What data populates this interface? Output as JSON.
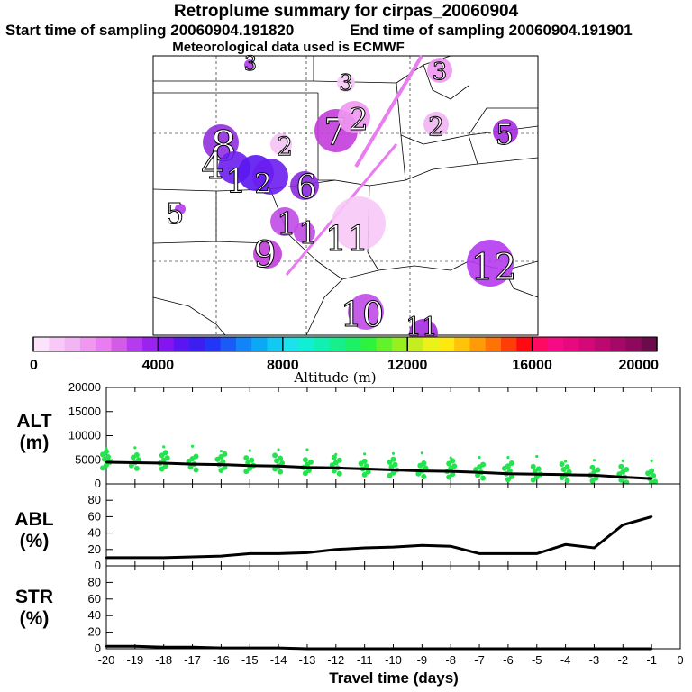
{
  "titles": {
    "main": "Retroplume summary for cirpas_20060904",
    "start": "Start time of sampling 20060904.191820",
    "end": "End time of sampling 20060904.191901",
    "met": "Meteorological data used is ECMWF"
  },
  "chart_data": [
    {
      "type": "map",
      "title": "Retroplume summary for cirpas_20060904",
      "plume_labels": [
        {
          "label": "3",
          "color": "#b53af0"
        },
        {
          "label": "3",
          "color": "#f7c9f7"
        },
        {
          "label": "3",
          "color": "#ef97f1"
        },
        {
          "label": "7",
          "color": "#c33ddc"
        },
        {
          "label": "2",
          "color": "#ef97f1"
        },
        {
          "label": "2",
          "color": "#f2b4f3"
        },
        {
          "label": "5",
          "color": "#a52adf"
        },
        {
          "label": "8",
          "color": "#9130dd"
        },
        {
          "label": "4",
          "color": "#6a1df0"
        },
        {
          "label": "1",
          "color": "#5a16f0"
        },
        {
          "label": "2",
          "color": "#6a1df0"
        },
        {
          "label": "6",
          "color": "#8a2ae0"
        },
        {
          "label": "2",
          "color": "#f5c2f5"
        },
        {
          "label": "5",
          "color": "#b53af0"
        },
        {
          "label": "1",
          "color": "#c04be6"
        },
        {
          "label": "1",
          "color": "#c04be6"
        },
        {
          "label": "11",
          "color": "#f7c9f7"
        },
        {
          "label": "9",
          "color": "#c33ddc"
        },
        {
          "label": "12",
          "color": "#b53af0"
        },
        {
          "label": "10",
          "color": "#c04be6"
        },
        {
          "label": "11",
          "color": "#a52adf"
        }
      ]
    },
    {
      "type": "colorbar",
      "xlabel": "Altitude (m)",
      "range": [
        0,
        20000
      ],
      "tick_labels": [
        "0",
        "4000",
        "8000",
        "12000",
        "16000",
        "20000"
      ],
      "colors": [
        "#fbe3fb",
        "#f7c9f7",
        "#f2b4f3",
        "#ef97f1",
        "#e97cf0",
        "#d45be8",
        "#b53af0",
        "#9a23f0",
        "#8514f0",
        "#5a16f0",
        "#3d1ef2",
        "#2436f5",
        "#1a5af7",
        "#1184f7",
        "#0ba8f5",
        "#11c9f2",
        "#1ae3ec",
        "#0fefd4",
        "#10f0b2",
        "#15f08c",
        "#1cf064",
        "#2ef23e",
        "#62f22a",
        "#97ef20",
        "#c6ee1e",
        "#eaf21a",
        "#ffe80f",
        "#ffc40a",
        "#ff9b08",
        "#ff7206",
        "#ff3d06",
        "#ff0a12",
        "#ff0a62",
        "#f70a86",
        "#e8097f",
        "#d40878",
        "#bd0870",
        "#a60868",
        "#8e085c",
        "#6d0a4c"
      ]
    },
    {
      "type": "line",
      "ylabel": "ALT\n(m)",
      "ylim": [
        0,
        20000
      ],
      "y_ticks": [
        "20000",
        "15000",
        "10000",
        "5000",
        "0"
      ],
      "x": [
        -20,
        -19,
        -18,
        -17,
        -16,
        -15,
        -14,
        -13,
        -12,
        -11,
        -10,
        -9,
        -8,
        -7,
        -6,
        -5,
        -4,
        -3,
        -2,
        -1
      ],
      "values": [
        4500,
        4400,
        4300,
        4100,
        4000,
        3800,
        3700,
        3400,
        3300,
        3100,
        2900,
        2700,
        2600,
        2400,
        2100,
        2000,
        1900,
        1800,
        1400,
        1100
      ],
      "scatter_color": "#22e44c"
    },
    {
      "type": "line",
      "ylabel": "ABL\n(%)",
      "ylim": [
        0,
        100
      ],
      "y_ticks": [
        "80",
        "60",
        "40",
        "20",
        "0"
      ],
      "x": [
        -20,
        -19,
        -18,
        -17,
        -16,
        -15,
        -14,
        -13,
        -12,
        -11,
        -10,
        -9,
        -8,
        -7,
        -6,
        -5,
        -4,
        -3,
        -2,
        -1
      ],
      "values": [
        10,
        10,
        10,
        11,
        12,
        15,
        15,
        16,
        20,
        22,
        23,
        25,
        24,
        15,
        15,
        15,
        26,
        22,
        50,
        60
      ]
    },
    {
      "type": "line",
      "ylabel": "STR\n(%)",
      "ylim": [
        0,
        100
      ],
      "y_ticks": [
        "80",
        "60",
        "40",
        "20",
        "0"
      ],
      "x": [
        -20,
        -19,
        -18,
        -17,
        -16,
        -15,
        -14,
        -13,
        -12,
        -11,
        -10,
        -9,
        -8,
        -7,
        -6,
        -5,
        -4,
        -3,
        -2,
        -1
      ],
      "values": [
        3,
        3,
        2,
        2,
        1,
        1,
        1,
        0,
        0,
        0,
        0,
        0,
        0,
        0,
        0,
        0,
        0,
        0,
        0,
        0
      ],
      "xlabel": "Travel time (days)",
      "x_ticks": [
        "-20",
        "-19",
        "-18",
        "-17",
        "-16",
        "-15",
        "-14",
        "-13",
        "-12",
        "-11",
        "-10",
        "-9",
        "-8",
        "-7",
        "-6",
        "-5",
        "-4",
        "-3",
        "-2",
        "-1",
        "0"
      ]
    }
  ]
}
